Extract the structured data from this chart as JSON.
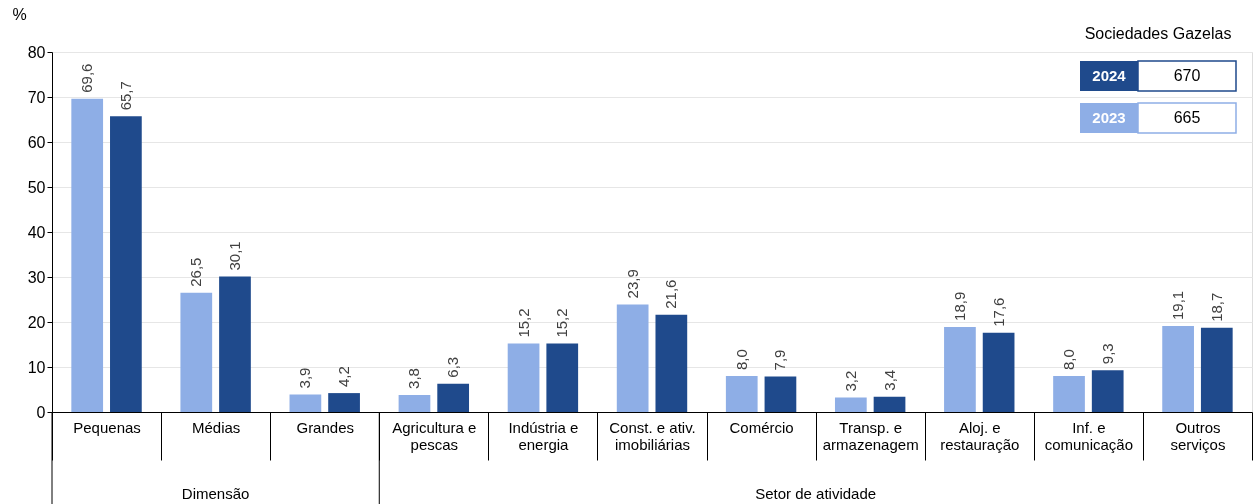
{
  "chart_data": {
    "type": "bar",
    "ylabel": "%",
    "categories": [
      "Pequenas",
      "Médias",
      "Grandes",
      "Agricultura e pescas",
      "Indústria e energia",
      "Const. e ativ. imobiliárias",
      "Comércio",
      "Transp. e armazenagem",
      "Aloj. e restauração",
      "Inf. e comunicação",
      "Outros serviços"
    ],
    "series": [
      {
        "name": "2023",
        "color": "#8eaee6",
        "values": [
          69.6,
          26.5,
          3.9,
          3.8,
          15.2,
          23.9,
          8.0,
          3.2,
          18.9,
          8.0,
          19.1
        ],
        "value_labels": [
          "69,6",
          "26,5",
          "3,9",
          "3,8",
          "15,2",
          "23,9",
          "8,0",
          "3,2",
          "18,9",
          "8,0",
          "19,1"
        ]
      },
      {
        "name": "2024",
        "color": "#1f4a8c",
        "values": [
          65.7,
          30.1,
          4.2,
          6.3,
          15.2,
          21.6,
          7.9,
          3.4,
          17.6,
          9.3,
          18.7
        ],
        "value_labels": [
          "65,7",
          "30,1",
          "4,2",
          "6,3",
          "15,2",
          "21,6",
          "7,9",
          "3,4",
          "17,6",
          "9,3",
          "18,7"
        ]
      }
    ],
    "legend_title": "Sociedades Gazelas",
    "legend": "top right",
    "annotations": [
      "Dimensão",
      "Setor de atividade",
      "670",
      "665"
    ],
    "ylim": [
      0,
      80
    ],
    "yticks": [
      0,
      10,
      20,
      30,
      40,
      50,
      60,
      70,
      80
    ],
    "grid": "y"
  }
}
